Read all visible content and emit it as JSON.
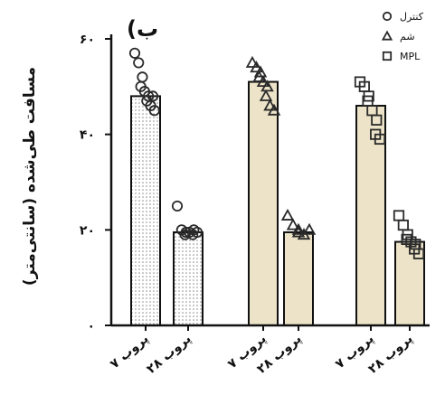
{
  "chart_data": {
    "type": "bar",
    "panel_label": "(ب",
    "ylabel": "مسافت طی‌شده (سانتی‌متر)",
    "ylim": [
      0,
      60
    ],
    "yticks": [
      {
        "value": 0,
        "label": "۰"
      },
      {
        "value": 20,
        "label": "۲۰"
      },
      {
        "value": 40,
        "label": "۴۰"
      },
      {
        "value": 60,
        "label": "۶۰"
      }
    ],
    "categories": [
      "پروب ۷",
      "پروب ۲۸",
      "پروب ۷",
      "پروب ۲۸",
      "پروب ۷",
      "پروب ۲۸"
    ],
    "grid": false,
    "legend_position": "top-right",
    "legend": [
      {
        "label": "کنترل",
        "marker": "circle"
      },
      {
        "label": "شم",
        "marker": "triangle"
      },
      {
        "label": "MPL",
        "marker": "square"
      }
    ],
    "series": [
      {
        "marker": "circle",
        "bar_pattern": "dots",
        "bars": [
          {
            "category_index": 0,
            "value": 48,
            "points": [
              57,
              55,
              52,
              50,
              49,
              48,
              47,
              46,
              45,
              48
            ]
          },
          {
            "category_index": 1,
            "value": 19.5,
            "points": [
              25,
              20,
              19.5,
              19,
              19.5,
              20,
              19,
              19.5
            ]
          }
        ]
      },
      {
        "marker": "triangle",
        "bar_pattern": "solid",
        "bars": [
          {
            "category_index": 2,
            "value": 51,
            "points": [
              55,
              54,
              53,
              52,
              51,
              50,
              48,
              46,
              45
            ]
          },
          {
            "category_index": 3,
            "value": 19.5,
            "points": [
              23,
              21,
              20,
              19.5,
              19,
              20
            ]
          }
        ]
      },
      {
        "marker": "square",
        "bar_pattern": "solid",
        "bars": [
          {
            "category_index": 4,
            "value": 46,
            "points": [
              51,
              50,
              48,
              47,
              45,
              43,
              40,
              39
            ]
          },
          {
            "category_index": 5,
            "value": 17.5,
            "points": [
              23,
              21,
              19,
              18,
              17.5,
              17,
              16,
              15
            ]
          }
        ]
      }
    ]
  }
}
